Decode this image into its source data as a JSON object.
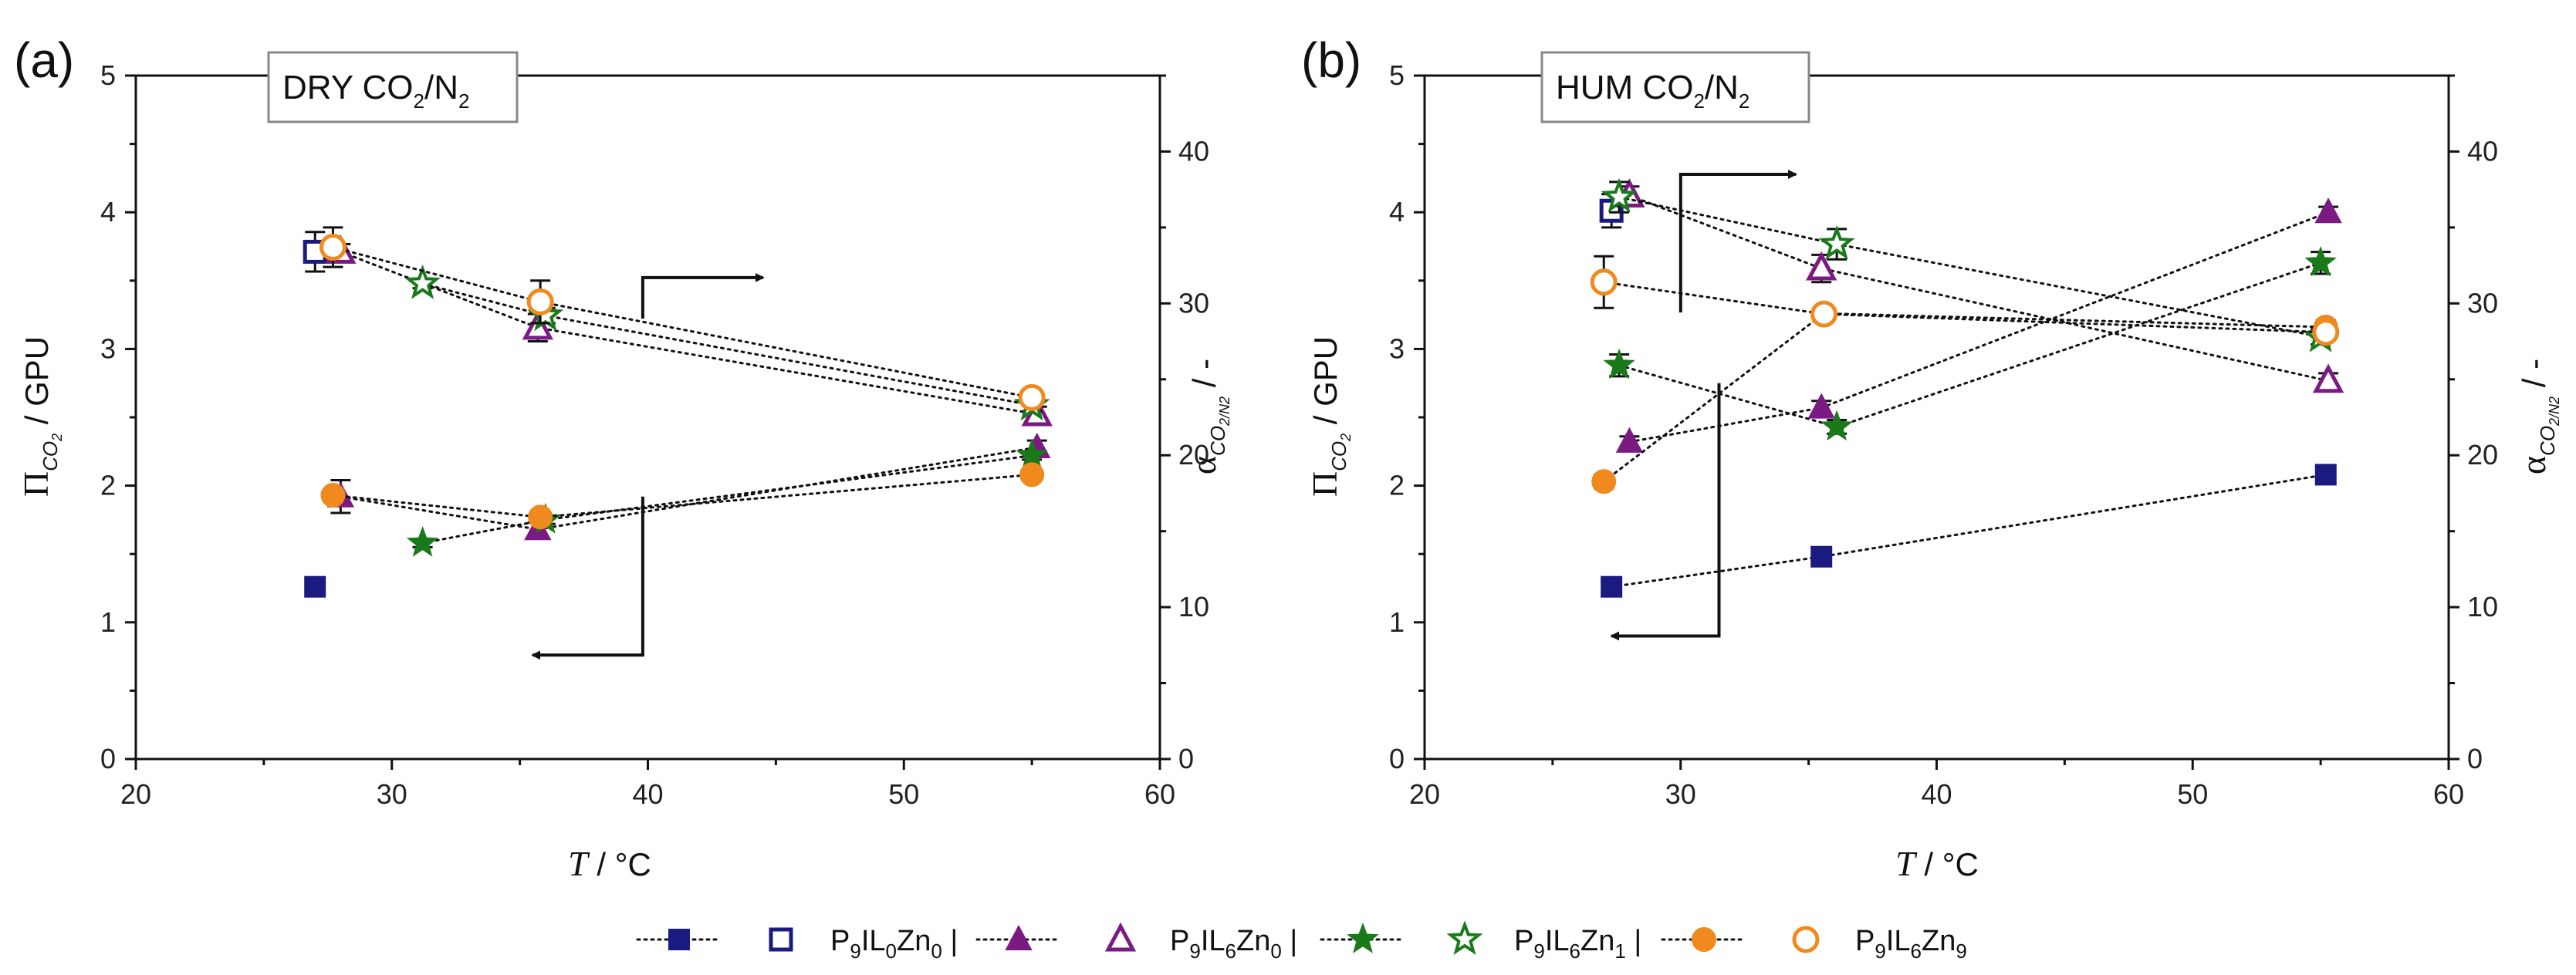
{
  "panels": [
    {
      "letter": "(a)",
      "condition": {
        "main": "DRY CO",
        "sub1": "2",
        "mid": "/N",
        "sub2": "2"
      }
    },
    {
      "letter": "(b)",
      "condition": {
        "main": "HUM CO",
        "sub1": "2",
        "mid": "/N",
        "sub2": "2"
      }
    }
  ],
  "axes": {
    "x_label": {
      "sym": "T",
      "unit": " / °C"
    },
    "y_left_label": {
      "sym": "Π",
      "sub": "CO",
      "subsub": "2",
      "unit": " / GPU"
    },
    "y_right_label": {
      "sym": "α",
      "sub": "CO",
      "subsub1": "2",
      "slash": "/N",
      "subsub2": "2",
      "unit": " / -"
    },
    "x_ticks": [
      "20",
      "30",
      "40",
      "50",
      "60"
    ],
    "y_left_ticks": [
      "0",
      "1",
      "2",
      "3",
      "4",
      "5"
    ],
    "y_right_ticks": [
      "0",
      "10",
      "20",
      "30",
      "40"
    ]
  },
  "legend": [
    {
      "label_main": "P",
      "s1": "9",
      "m1": "IL",
      "s2": "0",
      "m2": "Zn",
      "s3": "0",
      "sep": "|"
    },
    {
      "label_main": "P",
      "s1": "9",
      "m1": "IL",
      "s2": "6",
      "m2": "Zn",
      "s3": "0",
      "sep": "|"
    },
    {
      "label_main": "P",
      "s1": "9",
      "m1": "IL",
      "s2": "6",
      "m2": "Zn",
      "s3": "1",
      "sep": "|"
    },
    {
      "label_main": "P",
      "s1": "9",
      "m1": "IL",
      "s2": "6",
      "m2": "Zn",
      "s3": "9",
      "sep": ""
    }
  ],
  "colors": {
    "P9IL0Zn0": "#1a1a80",
    "P9IL6Zn0": "#7a1a82",
    "P9IL6Zn1": "#1a7a1a",
    "P9IL6Zn9": "#f08a1e"
  },
  "chart_data": [
    {
      "type": "scatter",
      "title": "DRY CO2/N2",
      "xlabel": "T / °C",
      "ylabel": "Π CO2 / GPU",
      "y2label": "α CO2/N2 / -",
      "xlim": [
        20,
        60
      ],
      "ylim": [
        0,
        5
      ],
      "y2lim": [
        0,
        45
      ],
      "series": [
        {
          "name": "P9IL0Zn0",
          "axis": "left",
          "marker": "square-filled",
          "x": [
            27.0
          ],
          "y": [
            1.26
          ],
          "err": [
            0.03
          ],
          "connected": false
        },
        {
          "name": "P9IL0Zn0",
          "axis": "right",
          "marker": "square-open",
          "x": [
            27.0
          ],
          "y": [
            33.4
          ],
          "err": [
            1.3
          ],
          "connected": false
        },
        {
          "name": "P9IL6Zn0",
          "axis": "left",
          "marker": "triangle-filled",
          "x": [
            28.0,
            35.7,
            55.2
          ],
          "y": [
            1.92,
            1.68,
            2.28
          ],
          "err": [
            0.12,
            0.05,
            0.05
          ],
          "connected": true
        },
        {
          "name": "P9IL6Zn0",
          "axis": "right",
          "marker": "triangle-open",
          "x": [
            28.0,
            35.7,
            55.2
          ],
          "y": [
            33.4,
            28.4,
            22.7
          ],
          "err": [
            0.5,
            0.9,
            0.5
          ],
          "connected": true
        },
        {
          "name": "P9IL6Zn1",
          "axis": "left",
          "marker": "star-filled",
          "x": [
            31.2,
            36.0,
            55.0
          ],
          "y": [
            1.58,
            1.75,
            2.22
          ],
          "err": [
            0.03,
            0.03,
            0.03
          ],
          "connected": true
        },
        {
          "name": "P9IL6Zn1",
          "axis": "right",
          "marker": "star-open",
          "x": [
            31.2,
            36.0,
            55.0
          ],
          "y": [
            31.3,
            29.2,
            23.3
          ],
          "err": [
            0.3,
            0.5,
            0.4
          ],
          "connected": true
        },
        {
          "name": "P9IL6Zn9",
          "axis": "left",
          "marker": "circle-filled",
          "x": [
            27.7,
            35.8,
            55.0
          ],
          "y": [
            1.93,
            1.77,
            2.08
          ],
          "err": [
            0.03,
            0.03,
            0.03
          ],
          "connected": true
        },
        {
          "name": "P9IL6Zn9",
          "axis": "right",
          "marker": "circle-open",
          "x": [
            27.7,
            35.8,
            55.0
          ],
          "y": [
            33.7,
            30.1,
            23.8
          ],
          "err": [
            1.3,
            1.4,
            0.5
          ],
          "connected": true
        }
      ],
      "arrows": [
        {
          "points": [
            [
              39.8,
              29.0
            ],
            [
              39.8,
              31.7
            ],
            [
              44.5,
              31.7
            ]
          ],
          "axis": "right",
          "direction": "right"
        },
        {
          "points": [
            [
              39.8,
              1.92
            ],
            [
              39.8,
              0.76
            ],
            [
              35.5,
              0.76
            ]
          ],
          "axis": "left",
          "direction": "left"
        }
      ]
    },
    {
      "type": "scatter",
      "title": "HUM CO2/N2",
      "xlabel": "T / °C",
      "ylabel": "Π CO2 / GPU",
      "y2label": "α CO2/N2 / -",
      "xlim": [
        20,
        60
      ],
      "ylim": [
        0,
        5
      ],
      "y2lim": [
        0,
        45
      ],
      "series": [
        {
          "name": "P9IL0Zn0",
          "axis": "left",
          "marker": "square-filled",
          "x": [
            27.3,
            35.5,
            55.2
          ],
          "y": [
            1.26,
            1.48,
            2.08
          ],
          "err": [
            0.03,
            0.03,
            0.03
          ],
          "connected": true
        },
        {
          "name": "P9IL0Zn0",
          "axis": "right",
          "marker": "square-open",
          "x": [
            27.3
          ],
          "y": [
            36.1
          ],
          "err": [
            1.1
          ],
          "connected": false
        },
        {
          "name": "P9IL6Zn0",
          "axis": "left",
          "marker": "triangle-filled",
          "x": [
            28.0,
            35.5,
            55.3
          ],
          "y": [
            2.32,
            2.57,
            4.0
          ],
          "err": [
            0.04,
            0.05,
            0.04
          ],
          "connected": true
        },
        {
          "name": "P9IL6Zn0",
          "axis": "right",
          "marker": "triangle-open",
          "x": [
            28.0,
            35.5,
            55.3
          ],
          "y": [
            37.1,
            32.3,
            24.9
          ],
          "err": [
            0.6,
            0.9,
            0.5
          ],
          "connected": true
        },
        {
          "name": "P9IL6Zn1",
          "axis": "left",
          "marker": "star-filled",
          "x": [
            27.6,
            36.1,
            55.0
          ],
          "y": [
            2.88,
            2.43,
            3.63
          ],
          "err": [
            0.08,
            0.05,
            0.08
          ],
          "connected": true
        },
        {
          "name": "P9IL6Zn1",
          "axis": "right",
          "marker": "star-open",
          "x": [
            27.6,
            36.1,
            55.0
          ],
          "y": [
            37.0,
            33.9,
            27.8
          ],
          "err": [
            1.0,
            1.0,
            0.5
          ],
          "connected": true
        },
        {
          "name": "P9IL6Zn9",
          "axis": "left",
          "marker": "circle-filled",
          "x": [
            27.0,
            35.6,
            55.2
          ],
          "y": [
            2.03,
            3.26,
            3.16
          ],
          "err": [
            0.05,
            0.05,
            0.05
          ],
          "connected": true
        },
        {
          "name": "P9IL6Zn9",
          "axis": "right",
          "marker": "circle-open",
          "x": [
            27.0,
            35.6,
            55.2
          ],
          "y": [
            31.4,
            29.3,
            28.1
          ],
          "err": [
            1.7,
            0.5,
            0.5
          ],
          "connected": true
        }
      ],
      "arrows": [
        {
          "points": [
            [
              30.0,
              29.4
            ],
            [
              30.0,
              38.5
            ],
            [
              34.5,
              38.5
            ]
          ],
          "axis": "right",
          "direction": "right"
        },
        {
          "points": [
            [
              31.5,
              2.75
            ],
            [
              31.5,
              0.9
            ],
            [
              27.3,
              0.9
            ]
          ],
          "axis": "left",
          "direction": "left"
        }
      ]
    }
  ]
}
